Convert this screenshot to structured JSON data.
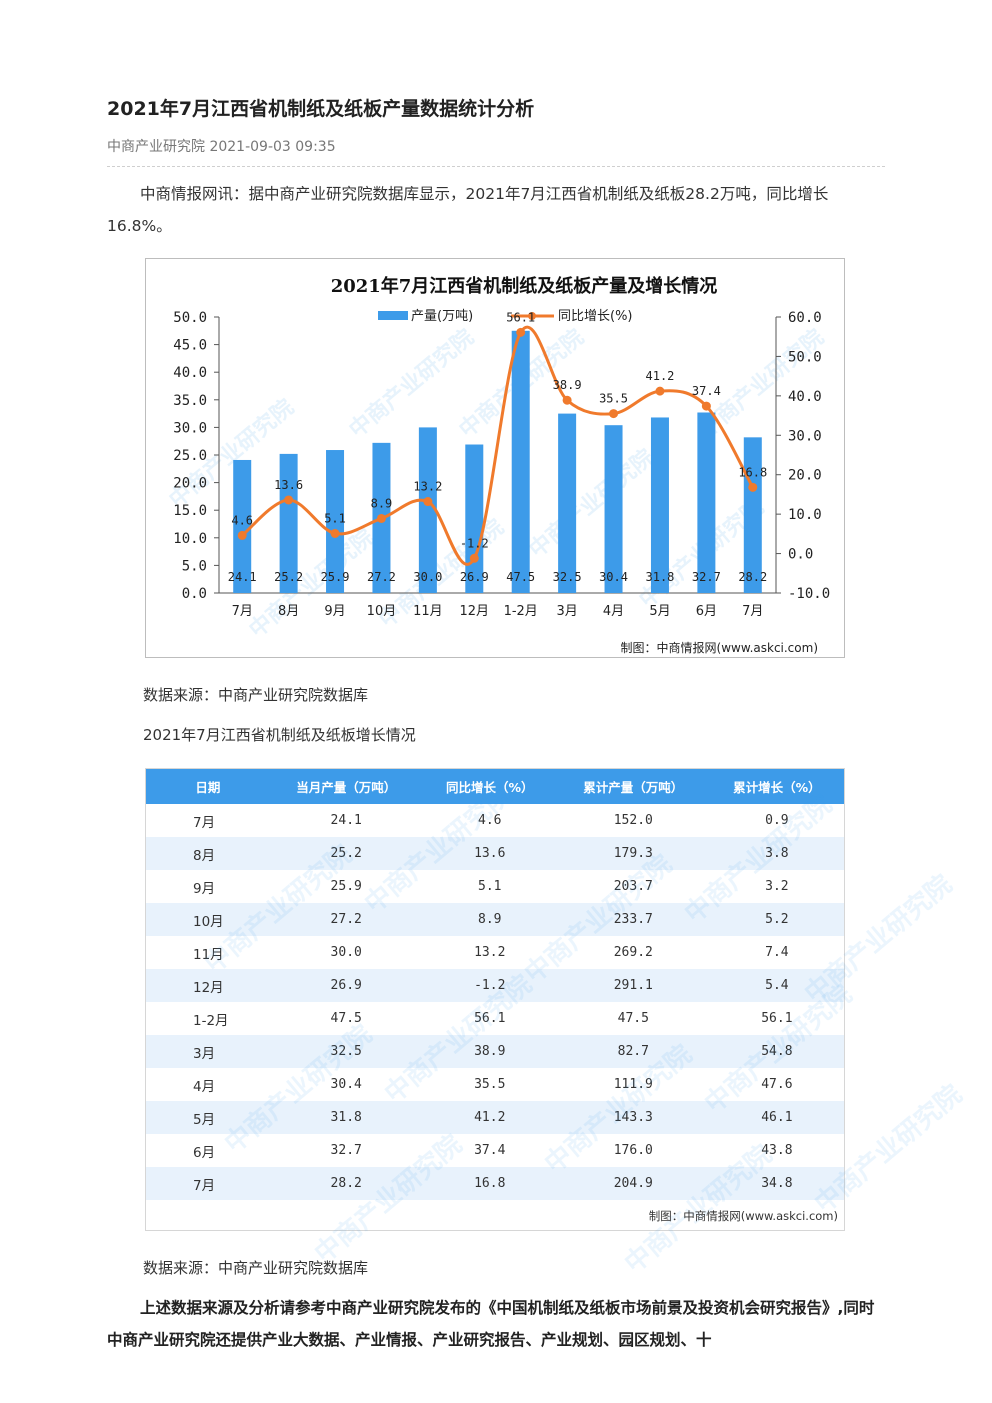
{
  "article": {
    "title": "2021年7月江西省机制纸及纸板产量数据统计分析",
    "meta": "中商产业研究院 2021-09-03 09:35",
    "intro": "中商情报网讯：据中商产业研究院数据库显示，2021年7月江西省机制纸及纸板28.2万吨，同比增长16.8%。",
    "source_caption_1": "数据来源：中商产业研究院数据库",
    "table_caption": "2021年7月江西省机制纸及纸板增长情况",
    "source_caption_2": "数据来源：中商产业研究院数据库",
    "footer": "上述数据来源及分析请参考中商产业研究院发布的《中国机制纸及纸板市场前景及投资机会研究报告》,同时中商产业研究院还提供产业大数据、产业情报、产业研究报告、产业规划、园区规划、十"
  },
  "watermark": "中商产业研究院",
  "chart_data": {
    "type": "bar",
    "title": "2021年7月江西省机制纸及纸板产量及增长情况",
    "credit": "制图：中商情报网(www.askci.com)",
    "categories": [
      "7月",
      "8月",
      "9月",
      "10月",
      "11月",
      "12月",
      "1-2月",
      "3月",
      "4月",
      "5月",
      "6月",
      "7月"
    ],
    "series": [
      {
        "name": "产量(万吨)",
        "type": "bar",
        "axis": "left",
        "values": [
          24.1,
          25.2,
          25.9,
          27.2,
          30.0,
          26.9,
          47.5,
          32.5,
          30.4,
          31.8,
          32.7,
          28.2
        ],
        "color": "#3d9be9"
      },
      {
        "name": "同比增长(%)",
        "type": "line",
        "axis": "right",
        "values": [
          4.6,
          13.6,
          5.1,
          8.9,
          13.2,
          -1.2,
          56.1,
          38.9,
          35.5,
          41.2,
          37.4,
          16.8
        ],
        "color": "#f07a2c"
      }
    ],
    "y_left": {
      "min": 0,
      "max": 50,
      "step": 5
    },
    "y_right": {
      "min": -10,
      "max": 60,
      "step": 10
    },
    "grid": false,
    "legend": "top"
  },
  "table": {
    "headers": [
      "日期",
      "当月产量（万吨）",
      "同比增长（%）",
      "累计产量（万吨）",
      "累计增长（%）"
    ],
    "rows": [
      [
        "7月",
        "24.1",
        "4.6",
        "152.0",
        "0.9"
      ],
      [
        "8月",
        "25.2",
        "13.6",
        "179.3",
        "3.8"
      ],
      [
        "9月",
        "25.9",
        "5.1",
        "203.7",
        "3.2"
      ],
      [
        "10月",
        "27.2",
        "8.9",
        "233.7",
        "5.2"
      ],
      [
        "11月",
        "30.0",
        "13.2",
        "269.2",
        "7.4"
      ],
      [
        "12月",
        "26.9",
        "-1.2",
        "291.1",
        "5.4"
      ],
      [
        "1-2月",
        "47.5",
        "56.1",
        "47.5",
        "56.1"
      ],
      [
        "3月",
        "32.5",
        "38.9",
        "82.7",
        "54.8"
      ],
      [
        "4月",
        "30.4",
        "35.5",
        "111.9",
        "47.6"
      ],
      [
        "5月",
        "31.8",
        "41.2",
        "143.3",
        "46.1"
      ],
      [
        "6月",
        "32.7",
        "37.4",
        "176.0",
        "43.8"
      ],
      [
        "7月",
        "28.2",
        "16.8",
        "204.9",
        "34.8"
      ]
    ],
    "credit": "制图：中商情报网(www.askci.com)"
  }
}
